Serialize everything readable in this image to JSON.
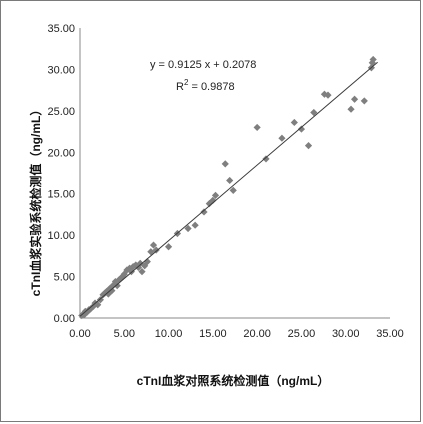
{
  "chart_data": {
    "type": "scatter",
    "title": "",
    "xlabel": "cTnI血浆对照系统检测值（ng/mL）",
    "ylabel": "cTnI血浆实验系统检测值（ng/mL）",
    "xlim": [
      0,
      35
    ],
    "ylim": [
      0,
      35
    ],
    "xticks": [
      "0.00",
      "5.00",
      "10.00",
      "15.00",
      "20.00",
      "25.00",
      "30.00",
      "35.00"
    ],
    "yticks": [
      "0.00",
      "5.00",
      "10.00",
      "15.00",
      "20.00",
      "25.00",
      "30.00",
      "35.00"
    ],
    "grid": false,
    "legend": "none",
    "marker_color": "#7f7f7f",
    "trendline": {
      "slope": 0.9125,
      "intercept": 0.2078
    },
    "annotations": {
      "equation": "y = 0.9125 x + 0.2078",
      "r2_prefix": "R",
      "r2_sup": "2",
      "r2_value": " = 0.9878"
    },
    "points": [
      [
        0.2,
        0.3
      ],
      [
        0.4,
        0.5
      ],
      [
        0.5,
        0.4
      ],
      [
        0.6,
        0.8
      ],
      [
        0.8,
        0.7
      ],
      [
        1.0,
        1.0
      ],
      [
        1.2,
        1.1
      ],
      [
        1.5,
        1.4
      ],
      [
        1.7,
        1.8
      ],
      [
        2.0,
        1.6
      ],
      [
        2.3,
        2.2
      ],
      [
        2.6,
        2.8
      ],
      [
        2.8,
        3.0
      ],
      [
        3.0,
        3.2
      ],
      [
        3.2,
        2.9
      ],
      [
        3.4,
        3.6
      ],
      [
        3.6,
        3.3
      ],
      [
        3.8,
        4.0
      ],
      [
        4.0,
        4.4
      ],
      [
        4.2,
        3.9
      ],
      [
        4.4,
        4.6
      ],
      [
        4.6,
        4.8
      ],
      [
        4.8,
        5.0
      ],
      [
        5.0,
        5.3
      ],
      [
        5.3,
        5.8
      ],
      [
        5.6,
        6.0
      ],
      [
        5.8,
        5.6
      ],
      [
        6.0,
        6.2
      ],
      [
        6.3,
        6.4
      ],
      [
        6.6,
        6.1
      ],
      [
        6.8,
        6.6
      ],
      [
        7.0,
        5.6
      ],
      [
        7.3,
        6.3
      ],
      [
        7.6,
        6.8
      ],
      [
        8.0,
        8.0
      ],
      [
        8.3,
        8.8
      ],
      [
        8.6,
        8.2
      ],
      [
        10.0,
        8.6
      ],
      [
        11.0,
        10.2
      ],
      [
        12.2,
        10.8
      ],
      [
        13.0,
        11.2
      ],
      [
        14.0,
        12.8
      ],
      [
        14.6,
        13.8
      ],
      [
        15.0,
        14.2
      ],
      [
        15.3,
        14.8
      ],
      [
        16.4,
        18.6
      ],
      [
        16.9,
        16.6
      ],
      [
        17.3,
        15.4
      ],
      [
        20.0,
        23.0
      ],
      [
        21.0,
        19.2
      ],
      [
        22.8,
        21.7
      ],
      [
        24.2,
        23.6
      ],
      [
        25.0,
        22.8
      ],
      [
        25.8,
        20.8
      ],
      [
        26.4,
        24.8
      ],
      [
        27.6,
        27.0
      ],
      [
        28.0,
        26.9
      ],
      [
        30.6,
        25.2
      ],
      [
        31.0,
        26.4
      ],
      [
        32.1,
        26.2
      ],
      [
        32.9,
        30.2
      ],
      [
        33.0,
        30.8
      ],
      [
        33.1,
        31.2
      ]
    ]
  }
}
